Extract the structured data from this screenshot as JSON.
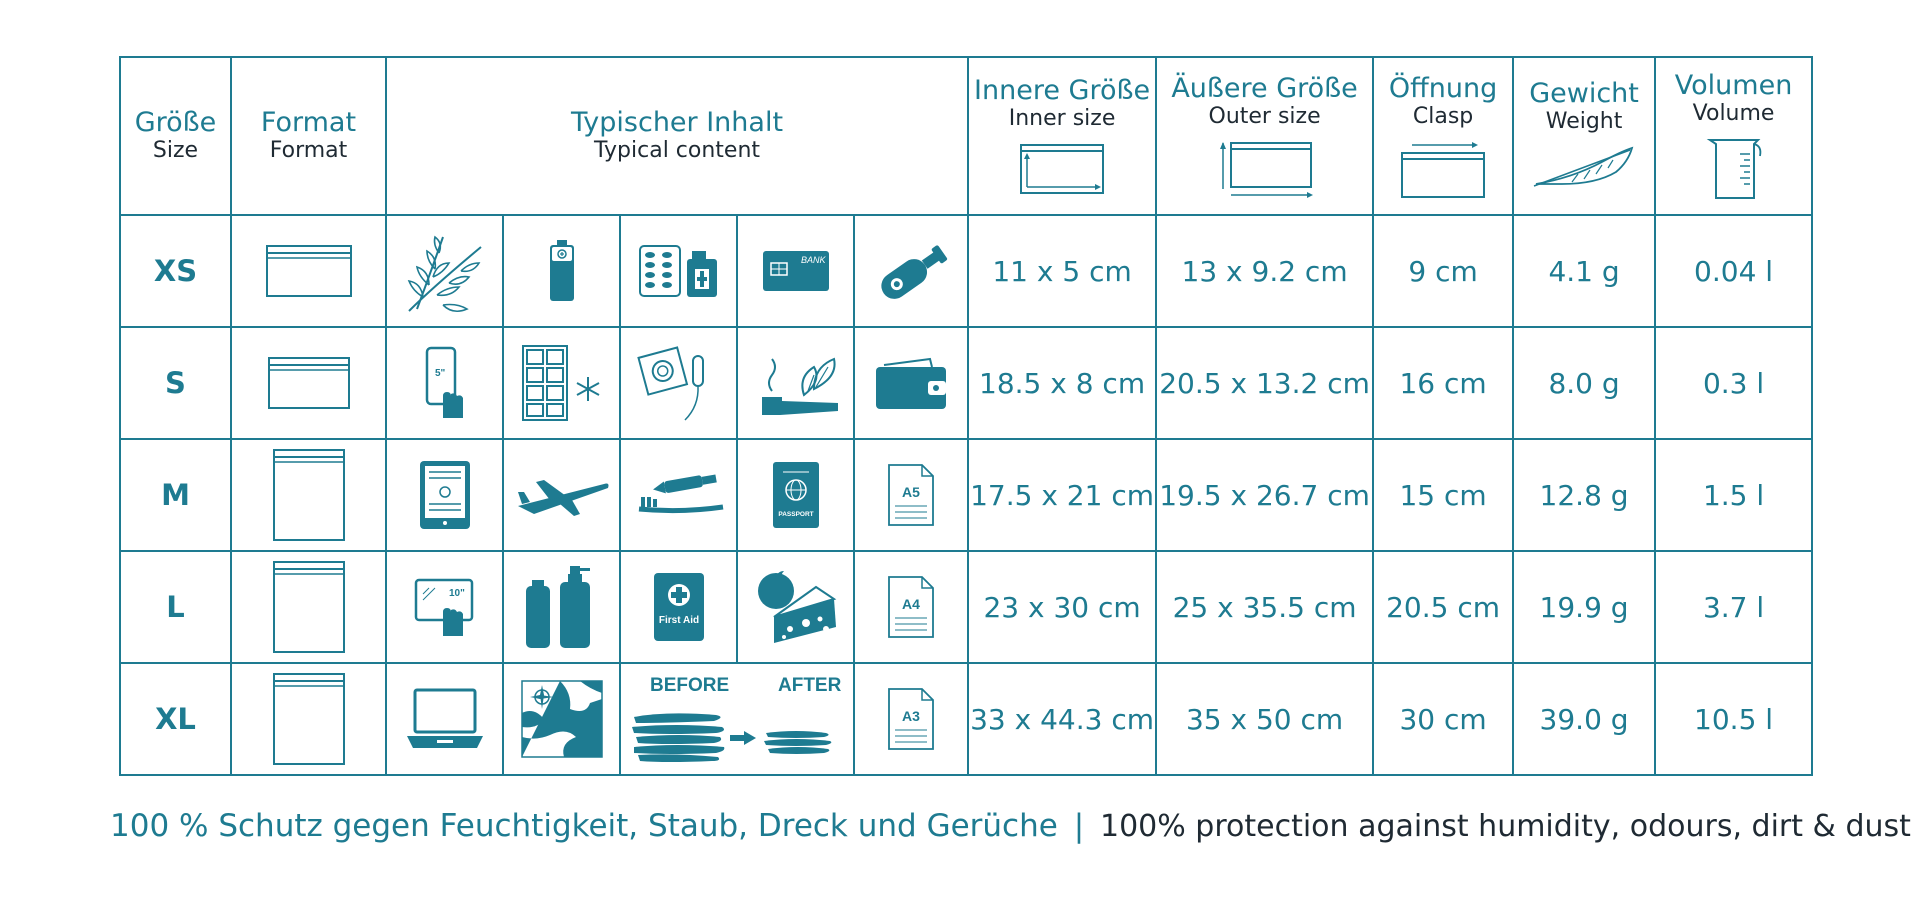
{
  "header": {
    "size": {
      "de": "Größe",
      "en": "Size"
    },
    "format": {
      "de": "Format",
      "en": "Format"
    },
    "content": {
      "de": "Typischer Inhalt",
      "en": "Typical content"
    },
    "inner": {
      "de": "Innere Größe",
      "en": "Inner size"
    },
    "outer": {
      "de": "Äußere Größe",
      "en": "Outer size"
    },
    "clasp": {
      "de": "Öffnung",
      "en": "Clasp"
    },
    "weight": {
      "de": "Gewicht",
      "en": "Weight"
    },
    "volume": {
      "de": "Volumen",
      "en": "Volume"
    }
  },
  "rows": [
    {
      "size": "XS",
      "inner": "11 x 5 cm",
      "outer": "13 x 9.2 cm",
      "clasp": "9 cm",
      "weight": "4.1 g",
      "volume": "0.04 l",
      "icons": [
        "herbs-icon",
        "battery-icon",
        "pills-icon",
        "bank-card-icon",
        "key-icon"
      ],
      "bank_label": "BANK"
    },
    {
      "size": "S",
      "inner": "18.5 x 8 cm",
      "outer": "20.5 x 13.2 cm",
      "clasp": "16 cm",
      "weight": "8.0 g",
      "volume": "0.3 l",
      "icons": [
        "smartphone-icon",
        "ice-cube-tray-icon",
        "condom-tampon-icon",
        "pipe-tobacco-icon",
        "wallet-icon"
      ],
      "phone_label": "5\""
    },
    {
      "size": "M",
      "inner": "17.5 x 21 cm",
      "outer": "19.5 x 26.7 cm",
      "clasp": "15 cm",
      "weight": "12.8 g",
      "volume": "1.5 l",
      "icons": [
        "ereader-icon",
        "airplane-icon",
        "toothbrush-icon",
        "passport-icon",
        "document-a5-icon"
      ],
      "doc_label": "A5",
      "passport_label": "PASSPORT"
    },
    {
      "size": "L",
      "inner": "23 x 30 cm",
      "outer": "25 x 35.5 cm",
      "clasp": "20.5 cm",
      "weight": "19.9 g",
      "volume": "3.7 l",
      "icons": [
        "tablet-icon",
        "bottles-icon",
        "first-aid-icon",
        "tomato-cheese-icon",
        "document-a4-icon"
      ],
      "doc_label": "A4",
      "tablet_label": "10\"",
      "first_aid_label": "First Aid"
    },
    {
      "size": "XL",
      "inner": "33 x 44.3 cm",
      "outer": "35 x 50 cm",
      "clasp": "30 cm",
      "weight": "39.0 g",
      "volume": "10.5 l",
      "icons": [
        "laptop-icon",
        "map-icon",
        "clothes-compression-icon",
        "document-a3-icon"
      ],
      "doc_label": "A3",
      "before_label": "BEFORE",
      "after_label": "AFTER"
    }
  ],
  "footer": {
    "de": "100 % Schutz gegen Feuchtigkeit, Staub, Dreck und Gerüche",
    "separator": "|",
    "en": "100% protection against humidity, odours, dirt & dust"
  },
  "colors": {
    "accent": "#1e7b91",
    "text_dark": "#1f2a33",
    "background": "#ffffff"
  }
}
